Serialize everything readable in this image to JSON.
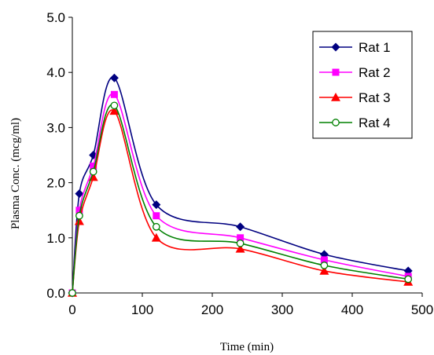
{
  "chart_data": {
    "type": "line",
    "xlabel": "Time (min)",
    "ylabel": "Plasma Conc.  (mcg/ml)",
    "xlim": [
      0,
      500
    ],
    "ylim": [
      0,
      5
    ],
    "x_ticks": [
      0,
      100,
      200,
      300,
      400,
      500
    ],
    "y_ticks": [
      0,
      1,
      2,
      3,
      4,
      5
    ],
    "x_tick_labels": [
      "0",
      "100",
      "200",
      "300",
      "400",
      "500"
    ],
    "y_tick_labels": [
      "0.0",
      "1.0",
      "2.0",
      "3.0",
      "4.0",
      "5.0"
    ],
    "grid": false,
    "legend_position": "top-right",
    "series": [
      {
        "name": "Rat 1",
        "color": "#000080",
        "marker": "diamond",
        "x": [
          0,
          10,
          30,
          60,
          120,
          240,
          360,
          480
        ],
        "y": [
          0,
          1.8,
          2.5,
          3.9,
          1.6,
          1.2,
          0.7,
          0.4
        ]
      },
      {
        "name": "Rat 2",
        "color": "#FF00FF",
        "marker": "square",
        "x": [
          0,
          10,
          30,
          60,
          120,
          240,
          360,
          480
        ],
        "y": [
          0,
          1.5,
          2.3,
          3.6,
          1.4,
          1.0,
          0.6,
          0.3
        ]
      },
      {
        "name": "Rat 3",
        "color": "#FF0000",
        "marker": "triangle",
        "x": [
          0,
          10,
          30,
          60,
          120,
          240,
          360,
          480
        ],
        "y": [
          0,
          1.3,
          2.1,
          3.3,
          1.0,
          0.8,
          0.4,
          0.2
        ]
      },
      {
        "name": "Rat 4",
        "color": "#008000",
        "marker": "open-circle",
        "x": [
          0,
          10,
          30,
          60,
          120,
          240,
          360,
          480
        ],
        "y": [
          0,
          1.4,
          2.2,
          3.4,
          1.2,
          0.9,
          0.5,
          0.25
        ]
      }
    ]
  }
}
